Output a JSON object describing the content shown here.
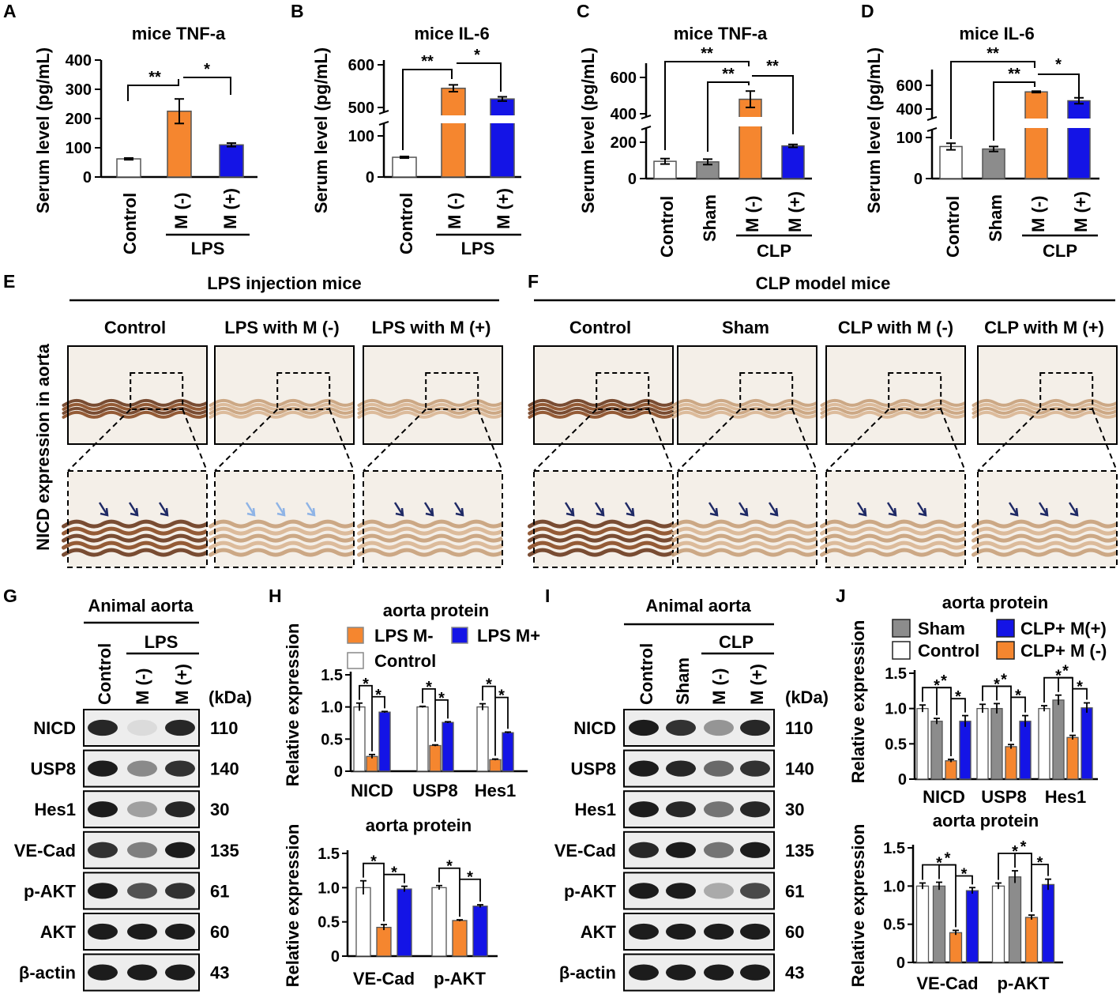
{
  "colors": {
    "control": "#ffffff",
    "sham": "#8c8c8c",
    "m_minus": "#f5862f",
    "m_plus": "#1414e6"
  },
  "chart_data": [
    {
      "id": "A",
      "type": "bar",
      "title": "mice TNF-a",
      "ylabel": "Serum level (pg/mL)",
      "ylim": [
        0,
        400
      ],
      "ticks": [
        "0",
        "100",
        "200",
        "300",
        "400"
      ],
      "categories": [
        "Control",
        "M (-)",
        "M (+)"
      ],
      "group_label": "LPS",
      "values": [
        62,
        225,
        110
      ],
      "errors": [
        3,
        42,
        6
      ],
      "colors": [
        "control",
        "m_minus",
        "m_plus"
      ],
      "sig": [
        "**",
        "*"
      ]
    },
    {
      "id": "B",
      "type": "bar",
      "title": "mice IL-6",
      "ylabel": "Serum level (pg/mL)",
      "axis_break": true,
      "ticks": [
        "0",
        "100",
        "500",
        "600"
      ],
      "categories": [
        "Control",
        "M (-)",
        "M (+)"
      ],
      "group_label": "LPS",
      "values": [
        48,
        545,
        520
      ],
      "errors": [
        2,
        8,
        5
      ],
      "colors": [
        "control",
        "m_minus",
        "m_plus"
      ],
      "sig": [
        "**",
        "*"
      ]
    },
    {
      "id": "C",
      "type": "bar",
      "title": "mice TNF-a",
      "ylabel": "Serum level (pg/mL)",
      "axis_break": true,
      "ticks": [
        "0",
        "200",
        "400",
        "600"
      ],
      "categories": [
        "Control",
        "Sham",
        "M (-)",
        "M (+)"
      ],
      "group_label": "CLP",
      "values": [
        95,
        92,
        480,
        180
      ],
      "errors": [
        15,
        15,
        45,
        8
      ],
      "colors": [
        "control",
        "sham",
        "m_minus",
        "m_plus"
      ],
      "sig": [
        "**",
        "**",
        "**"
      ]
    },
    {
      "id": "D",
      "type": "bar",
      "title": "mice IL-6",
      "ylabel": "Serum level (pg/mL)",
      "axis_break": true,
      "ticks": [
        "0",
        "100",
        "400",
        "600"
      ],
      "categories": [
        "Control",
        "Sham",
        "M (-)",
        "M (+)"
      ],
      "group_label": "CLP",
      "values": [
        78,
        72,
        545,
        470
      ],
      "errors": [
        8,
        6,
        6,
        25
      ],
      "colors": [
        "control",
        "sham",
        "m_minus",
        "m_plus"
      ],
      "sig": [
        "**",
        "**",
        "*"
      ]
    },
    {
      "id": "H1",
      "type": "bar",
      "title": "aorta protein",
      "ylabel": "Relative expression",
      "ylim": [
        0,
        1.5
      ],
      "ticks": [
        "0",
        "0.5",
        "1.0",
        "1.5"
      ],
      "categories": [
        "NICD",
        "USP8",
        "Hes1"
      ],
      "legend": [
        "LPS M-",
        "LPS M+",
        "Control"
      ],
      "series": [
        {
          "name": "Control",
          "values": [
            1.0,
            1.0,
            1.0
          ],
          "errors": [
            0.06,
            0.01,
            0.05
          ]
        },
        {
          "name": "LPS M-",
          "values": [
            0.23,
            0.4,
            0.18
          ],
          "errors": [
            0.03,
            0.01,
            0.01
          ]
        },
        {
          "name": "LPS M+",
          "values": [
            0.92,
            0.76,
            0.6
          ],
          "errors": [
            0.01,
            0.01,
            0.01
          ]
        }
      ],
      "sig": [
        "*",
        "*"
      ]
    },
    {
      "id": "H2",
      "type": "bar",
      "title": "aorta protein",
      "ylabel": "Relative expression",
      "ylim": [
        0,
        1.5
      ],
      "ticks": [
        "0",
        "0.5",
        "1.0",
        "1.5"
      ],
      "categories": [
        "VE-Cad",
        "p-AKT"
      ],
      "series": [
        {
          "name": "Control",
          "values": [
            1.0,
            1.0
          ],
          "errors": [
            0.1,
            0.03
          ]
        },
        {
          "name": "LPS M-",
          "values": [
            0.42,
            0.52
          ],
          "errors": [
            0.04,
            0.01
          ]
        },
        {
          "name": "LPS M+",
          "values": [
            0.98,
            0.73
          ],
          "errors": [
            0.04,
            0.02
          ]
        }
      ],
      "sig": [
        "*",
        "*"
      ]
    },
    {
      "id": "J1",
      "type": "bar",
      "title": "aorta protein",
      "ylabel": "Relative expression",
      "ylim": [
        0,
        1.5
      ],
      "ticks": [
        "0",
        "0.5",
        "1.0",
        "1.5"
      ],
      "categories": [
        "NICD",
        "USP8",
        "Hes1"
      ],
      "legend": [
        "Sham",
        "CLP+ M(+)",
        "Control",
        "CLP+ M (-)"
      ],
      "series": [
        {
          "name": "Control",
          "values": [
            1.0,
            1.0,
            1.0
          ],
          "errors": [
            0.05,
            0.06,
            0.04
          ]
        },
        {
          "name": "Sham",
          "values": [
            0.82,
            1.0,
            1.12
          ],
          "errors": [
            0.04,
            0.07,
            0.07
          ]
        },
        {
          "name": "CLP+ M (-)",
          "values": [
            0.26,
            0.46,
            0.59
          ],
          "errors": [
            0.02,
            0.03,
            0.03
          ]
        },
        {
          "name": "CLP+ M(+)",
          "values": [
            0.82,
            0.82,
            1.01
          ],
          "errors": [
            0.08,
            0.08,
            0.07
          ]
        }
      ],
      "sig": [
        "*",
        "*",
        "*"
      ]
    },
    {
      "id": "J2",
      "type": "bar",
      "title": "aorta protein",
      "ylabel": "Relative expression",
      "ylim": [
        0,
        1.5
      ],
      "ticks": [
        "0",
        "0.5",
        "1.0",
        "1.5"
      ],
      "categories": [
        "VE-Cad",
        "p-AKT"
      ],
      "series": [
        {
          "name": "Control",
          "values": [
            1.0,
            1.0
          ],
          "errors": [
            0.04,
            0.04
          ]
        },
        {
          "name": "Sham",
          "values": [
            1.0,
            1.12
          ],
          "errors": [
            0.05,
            0.08
          ]
        },
        {
          "name": "CLP+ M (-)",
          "values": [
            0.39,
            0.59
          ],
          "errors": [
            0.03,
            0.03
          ]
        },
        {
          "name": "CLP+ M(+)",
          "values": [
            0.94,
            1.02
          ],
          "errors": [
            0.04,
            0.07
          ]
        }
      ],
      "sig": [
        "*",
        "*",
        "*"
      ]
    }
  ],
  "panels": {
    "A": "A",
    "B": "B",
    "C": "C",
    "D": "D",
    "E": "E",
    "F": "F",
    "G": "G",
    "H": "H",
    "I": "I",
    "J": "J"
  },
  "histology": {
    "lps_header": "LPS injection mice",
    "clp_header": "CLP model mice",
    "ylabel": "NICD expression in aorta",
    "lps_cols": [
      "Control",
      "LPS with M (-)",
      "LPS with M (+)"
    ],
    "clp_cols": [
      "Control",
      "Sham",
      "CLP with M (-)",
      "CLP with  M (+)"
    ]
  },
  "western_g": {
    "title": "Animal aorta",
    "lanes": [
      "Control",
      "M (-)",
      "M (+)"
    ],
    "group": "LPS",
    "kda": "(kDa)",
    "proteins": [
      {
        "name": "NICD",
        "kda": "110"
      },
      {
        "name": "USP8",
        "kda": "140"
      },
      {
        "name": "Hes1",
        "kda": "30"
      },
      {
        "name": "VE-Cad",
        "kda": "135"
      },
      {
        "name": "p-AKT",
        "kda": "61"
      },
      {
        "name": "AKT",
        "kda": "60"
      },
      {
        "name": "β-actin",
        "kda": "43"
      }
    ]
  },
  "western_i": {
    "title": "Animal aorta",
    "lanes": [
      "Control",
      "Sham",
      "M (-)",
      "M (+)"
    ],
    "group": "CLP",
    "kda": "(kDa)",
    "proteins": [
      {
        "name": "NICD",
        "kda": "110"
      },
      {
        "name": "USP8",
        "kda": "140"
      },
      {
        "name": "Hes1",
        "kda": "30"
      },
      {
        "name": "VE-Cad",
        "kda": "135"
      },
      {
        "name": "p-AKT",
        "kda": "61"
      },
      {
        "name": "AKT",
        "kda": "60"
      },
      {
        "name": "β-actin",
        "kda": "43"
      }
    ]
  }
}
